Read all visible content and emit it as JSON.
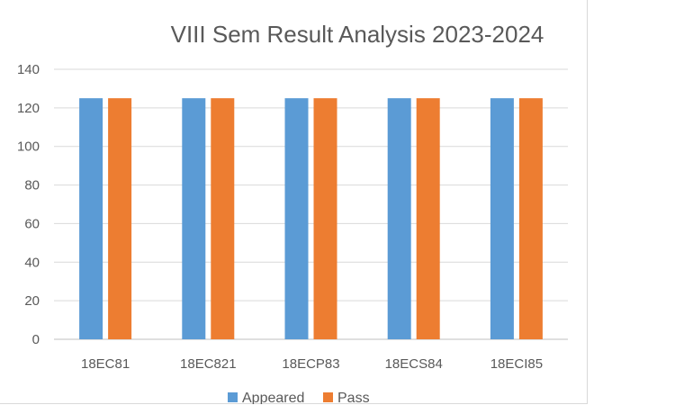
{
  "chart_data": {
    "type": "bar",
    "title": "VIII Sem Result Analysis 2023-2024",
    "categories": [
      "18EC81",
      "18EC821",
      "18ECP83",
      "18ECS84",
      "18ECI85"
    ],
    "series": [
      {
        "name": "Appeared",
        "color": "#5b9bd5",
        "values": [
          125,
          125,
          125,
          125,
          125
        ]
      },
      {
        "name": "Pass",
        "color": "#ed7d31",
        "values": [
          125,
          125,
          125,
          125,
          125
        ]
      }
    ],
    "ylim": [
      0,
      140
    ],
    "yticks": [
      "0",
      "20",
      "40",
      "60",
      "80",
      "100",
      "120",
      "140"
    ],
    "grid": true,
    "legend": "bottom"
  }
}
